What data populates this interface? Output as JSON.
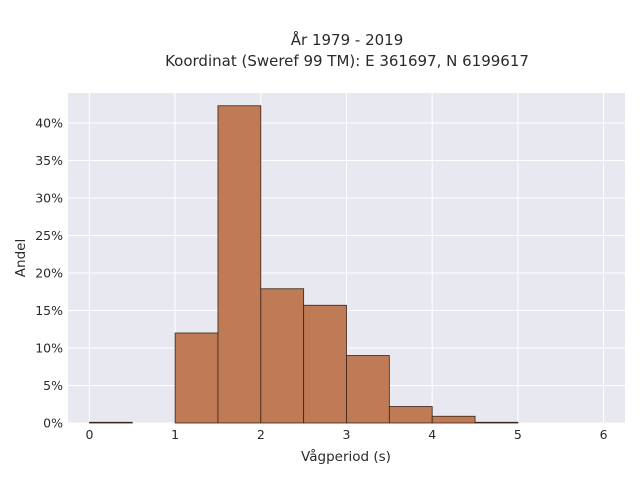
{
  "chart_data": {
    "type": "bar",
    "title": "År 1979 - 2019",
    "subtitle": "Koordinat (Sweref 99 TM): E 361697, N 6199617",
    "xlabel": "Vågperiod (s)",
    "ylabel": "Andel",
    "xlim": [
      -0.25,
      6.25
    ],
    "ylim": [
      0,
      44
    ],
    "x_ticks": [
      0,
      1,
      2,
      3,
      4,
      5,
      6
    ],
    "y_ticks": [
      0,
      5,
      10,
      15,
      20,
      25,
      30,
      35,
      40
    ],
    "y_tick_format": "percent",
    "grid": true,
    "bins": [
      {
        "start": 0.0,
        "end": 0.5,
        "value": 0.1
      },
      {
        "start": 0.5,
        "end": 1.0,
        "value": 0.0
      },
      {
        "start": 1.0,
        "end": 1.5,
        "value": 12.0
      },
      {
        "start": 1.5,
        "end": 2.0,
        "value": 42.3
      },
      {
        "start": 2.0,
        "end": 2.5,
        "value": 17.9
      },
      {
        "start": 2.5,
        "end": 3.0,
        "value": 15.7
      },
      {
        "start": 3.0,
        "end": 3.5,
        "value": 9.0
      },
      {
        "start": 3.5,
        "end": 4.0,
        "value": 2.2
      },
      {
        "start": 4.0,
        "end": 4.5,
        "value": 0.9
      },
      {
        "start": 4.5,
        "end": 5.0,
        "value": 0.1
      }
    ],
    "colors": {
      "bar_fill": "#bf7a56",
      "bar_stroke": "#3b2418",
      "plot_bg": "#e8e8f0",
      "grid": "#ffffff"
    }
  }
}
